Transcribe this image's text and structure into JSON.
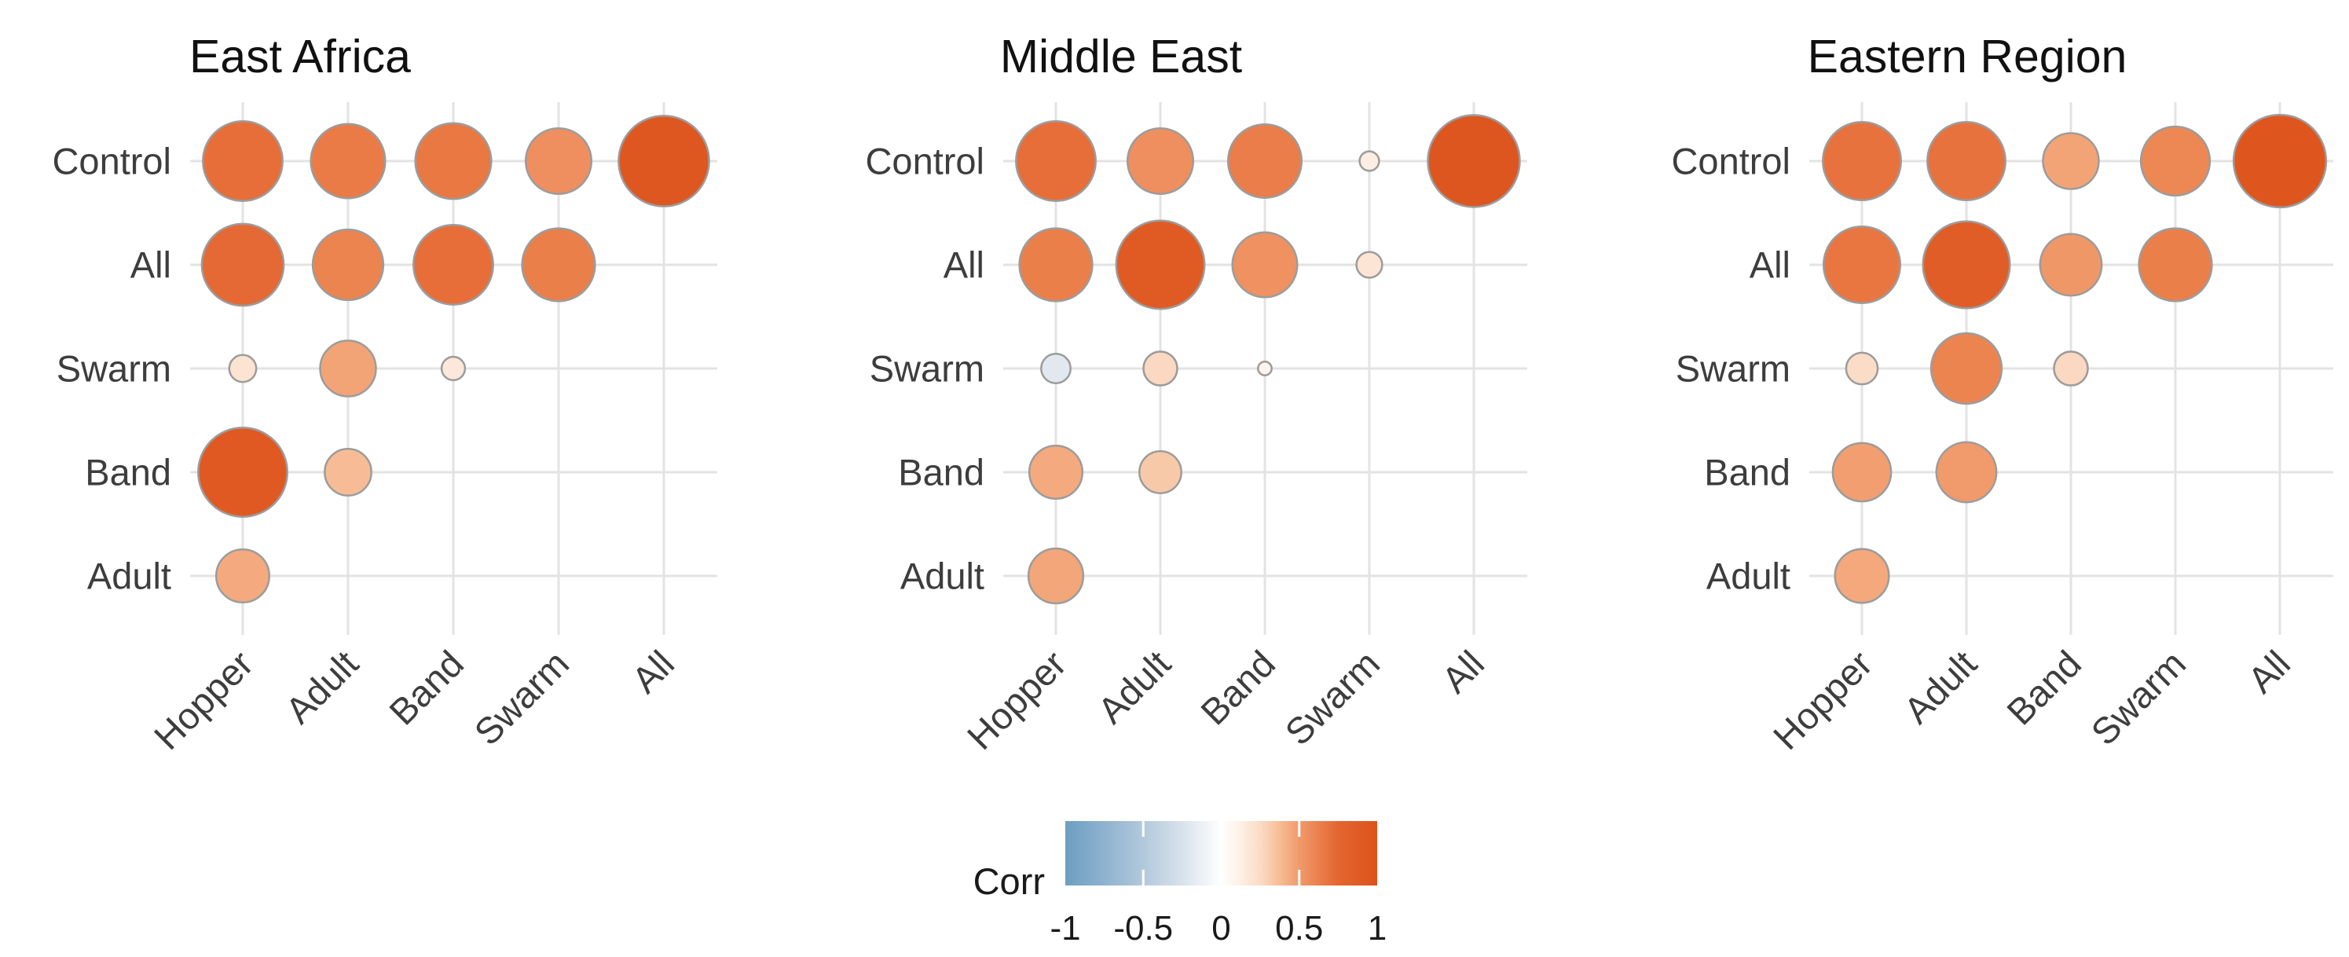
{
  "figure": {
    "background": "#ffffff",
    "kind": "correlation bubble matrices"
  },
  "chart_data": [
    {
      "type": "heatmap",
      "subtype": "correlation-bubble-matrix",
      "title": "East Africa",
      "rows": [
        "Control",
        "All",
        "Swarm",
        "Band",
        "Adult"
      ],
      "cols": [
        "Hopper",
        "Adult",
        "Band",
        "Swarm",
        "All"
      ],
      "value_range": [
        -1,
        1
      ],
      "matrix": [
        [
          0.75,
          0.68,
          0.7,
          0.57,
          0.9
        ],
        [
          0.78,
          0.63,
          0.75,
          0.66,
          null
        ],
        [
          0.16,
          0.45,
          0.13,
          null,
          null
        ],
        [
          0.88,
          0.35,
          null,
          null,
          null
        ],
        [
          0.42,
          null,
          null,
          null,
          null
        ]
      ]
    },
    {
      "type": "heatmap",
      "subtype": "correlation-bubble-matrix",
      "title": "Middle East",
      "rows": [
        "Control",
        "All",
        "Swarm",
        "Band",
        "Adult"
      ],
      "cols": [
        "Hopper",
        "Adult",
        "Band",
        "Swarm",
        "All"
      ],
      "value_range": [
        -1,
        1
      ],
      "matrix": [
        [
          0.75,
          0.57,
          0.67,
          0.1,
          0.92
        ],
        [
          0.66,
          0.87,
          0.56,
          0.15,
          null
        ],
        [
          -0.18,
          0.22,
          0.06,
          null,
          null
        ],
        [
          0.42,
          0.3,
          null,
          null,
          null
        ],
        [
          0.44,
          null,
          null,
          null,
          null
        ]
      ]
    },
    {
      "type": "heatmap",
      "subtype": "correlation-bubble-matrix",
      "title": "Eastern Region",
      "rows": [
        "Control",
        "All",
        "Swarm",
        "Band",
        "Adult"
      ],
      "cols": [
        "Hopper",
        "Adult",
        "Band",
        "Swarm",
        "All"
      ],
      "value_range": [
        -1,
        1
      ],
      "matrix": [
        [
          0.73,
          0.73,
          0.45,
          0.61,
          0.93
        ],
        [
          0.71,
          0.85,
          0.52,
          0.66,
          null
        ],
        [
          0.2,
          0.63,
          0.22,
          null,
          null
        ],
        [
          0.48,
          0.5,
          null,
          null,
          null
        ],
        [
          0.43,
          null,
          null,
          null,
          null
        ]
      ]
    }
  ],
  "legend": {
    "title": "Corr",
    "ticks": [
      "-1",
      "-0.5",
      "0",
      "0.5",
      "1"
    ],
    "tick_values": [
      -1,
      -0.5,
      0,
      0.5,
      1
    ],
    "orientation": "horizontal",
    "position": "bottom-center",
    "low_color": "#6D9EC1",
    "mid_color": "#FFFFFF",
    "high_color": "#DC531A"
  },
  "style": {
    "grid_color": "#E3E3E3",
    "circle_stroke_color": "#9C9C9C",
    "axis_label_color": "#3d3d3d",
    "title_color": "#111111"
  }
}
